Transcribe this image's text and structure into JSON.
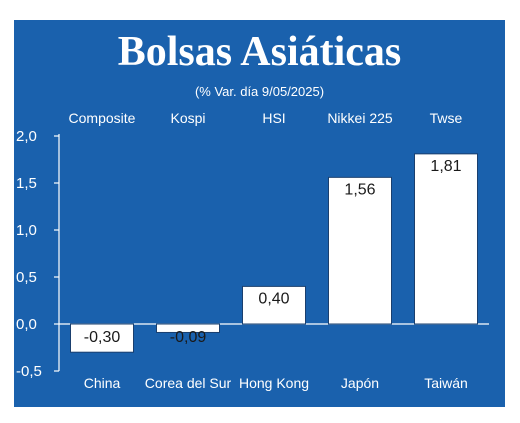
{
  "chart_data": {
    "type": "bar",
    "title": "Bolsas Asiáticas",
    "subtitle": "(% Var. día 9/05/2025)",
    "categories": [
      "China",
      "Corea del Sur",
      "Hong Kong",
      "Japón",
      "Taiwán"
    ],
    "index_names": [
      "Composite",
      "Kospi",
      "HSI",
      "Nikkei 225",
      "Twse"
    ],
    "values": [
      -0.3,
      -0.09,
      0.4,
      1.56,
      1.81
    ],
    "value_labels": [
      "-0,30",
      "-0,09",
      "0,40",
      "1,56",
      "1,81"
    ],
    "yticks": [
      2.0,
      1.5,
      1.0,
      0.5,
      0.0,
      -0.5
    ],
    "ytick_labels": [
      "2,0",
      "1,5",
      "1,0",
      "0,5",
      "0,0",
      "-0,5"
    ],
    "ylim": [
      -0.5,
      2.0
    ],
    "grid": "none",
    "xlabel": "",
    "ylabel": ""
  },
  "colors": {
    "background": "#1a61ad",
    "bar_fill": "#ffffff",
    "bar_stroke": "#1a3f6e",
    "text": "#ffffff",
    "value_label": "#1a1a1a"
  }
}
